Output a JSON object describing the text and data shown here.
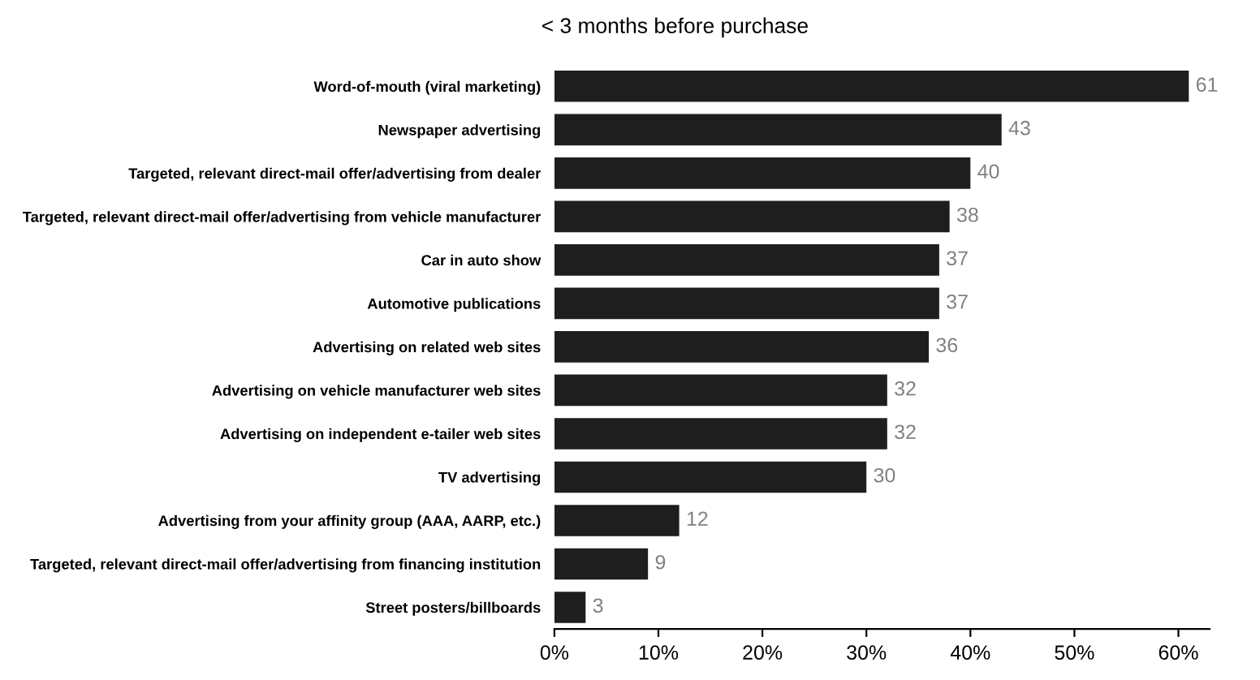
{
  "chart_data": {
    "type": "bar",
    "orientation": "horizontal",
    "title": "< 3 months before purchase",
    "categories": [
      "Word-of-mouth (viral marketing)",
      "Newspaper advertising",
      "Targeted, relevant direct-mail offer/advertising from dealer",
      "Targeted, relevant direct-mail offer/advertising from vehicle manufacturer",
      "Car in auto show",
      "Automotive publications",
      "Advertising on related web sites",
      "Advertising on vehicle manufacturer web sites",
      "Advertising on independent e-tailer web sites",
      "TV advertising",
      "Advertising from your affinity group (AAA, AARP, etc.)",
      "Targeted, relevant direct-mail offer/advertising from financing institution",
      "Street posters/billboards"
    ],
    "values": [
      61,
      43,
      40,
      38,
      37,
      37,
      36,
      32,
      32,
      30,
      12,
      9,
      3
    ],
    "color": "#1e1e1e",
    "data_labels": true,
    "grid": false,
    "legend": false,
    "xlim": [
      0,
      63
    ],
    "xticks": [
      {
        "value": 0,
        "label": "0%"
      },
      {
        "value": 10,
        "label": "10%"
      },
      {
        "value": 20,
        "label": "20%"
      },
      {
        "value": 30,
        "label": "30%"
      },
      {
        "value": 40,
        "label": "40%"
      },
      {
        "value": 50,
        "label": "50%"
      },
      {
        "value": 60,
        "label": "60%"
      }
    ]
  }
}
